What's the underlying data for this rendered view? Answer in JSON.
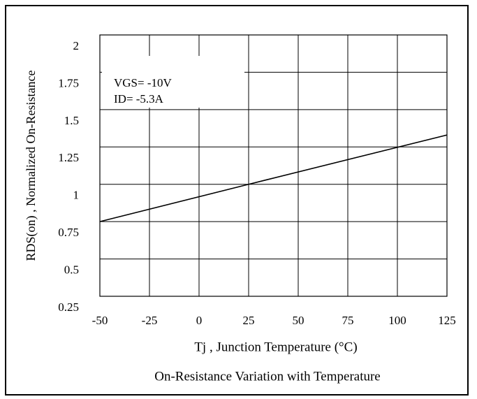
{
  "chart_data": {
    "type": "line",
    "title": "On-Resistance Variation with Temperature",
    "xlabel": "Tj , Junction Temperature (°C)",
    "ylabel": "RDS(on) , Normalized On-Resistance",
    "annotations": [
      "VGS= -10V",
      "ID= -5.3A"
    ],
    "x": [
      -50,
      25,
      125
    ],
    "series": [
      {
        "name": "RDS(on)",
        "color": "#000000",
        "values": [
          0.75,
          1.0,
          1.33
        ]
      }
    ],
    "xlim": [
      -50,
      125
    ],
    "xticks": [
      -50,
      -25,
      0,
      25,
      50,
      75,
      100,
      125
    ],
    "ylim": [
      0.25,
      2
    ],
    "yticks": [
      0.25,
      0.5,
      0.75,
      1,
      1.25,
      1.5,
      1.75,
      2
    ],
    "grid": true
  }
}
